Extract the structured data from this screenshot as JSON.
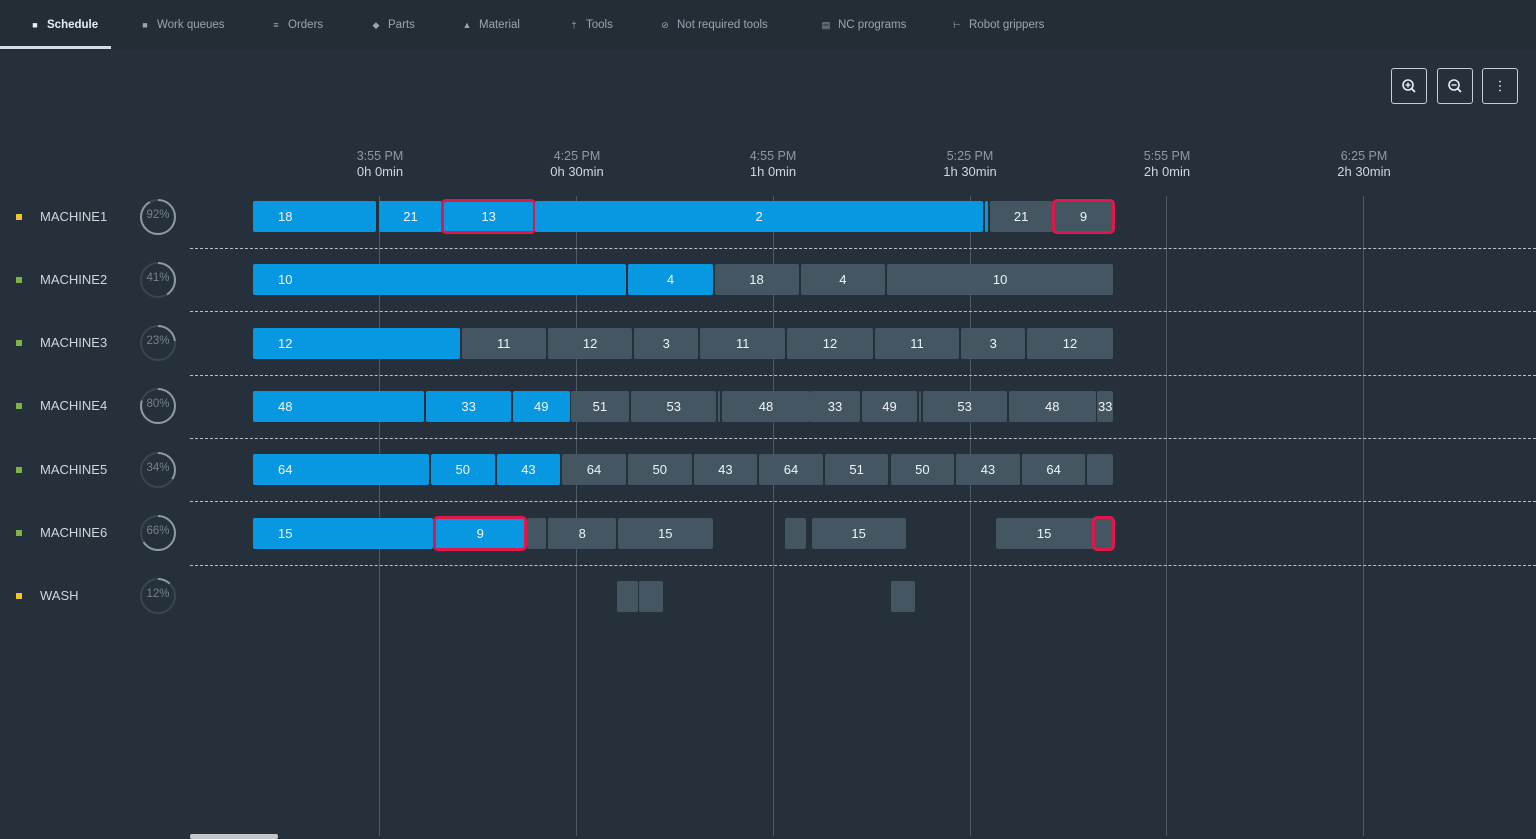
{
  "nav": {
    "tabs": [
      {
        "label": "Schedule",
        "icon": "calendar-icon",
        "active": true
      },
      {
        "label": "Work queues",
        "icon": "queue-icon",
        "active": false
      },
      {
        "label": "Orders",
        "icon": "list-icon",
        "active": false
      },
      {
        "label": "Parts",
        "icon": "part-icon",
        "active": false
      },
      {
        "label": "Material",
        "icon": "material-icon",
        "active": false
      },
      {
        "label": "Tools",
        "icon": "tool-icon",
        "active": false
      },
      {
        "label": "Not required tools",
        "icon": "blocked-tool-icon",
        "active": false
      },
      {
        "label": "NC programs",
        "icon": "program-icon",
        "active": false
      },
      {
        "label": "Robot grippers",
        "icon": "gripper-icon",
        "active": false
      }
    ]
  },
  "toolbar": {
    "zoom_in_icon": "zoom-in-icon",
    "zoom_out_icon": "zoom-out-icon",
    "more_icon": "more-vertical-icon"
  },
  "timeline": {
    "ticks": [
      {
        "clock": "3:55 PM",
        "offset": "0h 0min"
      },
      {
        "clock": "4:25 PM",
        "offset": "0h 30min"
      },
      {
        "clock": "4:55 PM",
        "offset": "1h 0min"
      },
      {
        "clock": "5:25 PM",
        "offset": "1h 30min"
      },
      {
        "clock": "5:55 PM",
        "offset": "2h 0min"
      },
      {
        "clock": "6:25 PM",
        "offset": "2h 30min"
      }
    ]
  },
  "colors": {
    "active_job": "#0897e1",
    "queued_job": "#435661",
    "flag_outline": "#e0174c",
    "marker_yellow": "#f2c230",
    "marker_green": "#7cb342",
    "background": "#25303a"
  },
  "machines": [
    {
      "name": "MACHINE1",
      "utilization": "92%",
      "utilization_value": 92,
      "marker": "yellow",
      "jobs": [
        {
          "label": "18",
          "state": "active",
          "start": 0,
          "end": 18.8
        },
        {
          "label": "21",
          "state": "active",
          "start": 19.2,
          "end": 28.8
        },
        {
          "label": "13",
          "state": "active",
          "flagged": true,
          "start": 29,
          "end": 42.8
        },
        {
          "label": "2",
          "state": "active",
          "start": 43,
          "end": 111.2
        },
        {
          "label": "",
          "state": "active",
          "start": 111.5,
          "end": 111.9
        },
        {
          "label": "21",
          "state": "queued",
          "start": 112.2,
          "end": 121.8
        },
        {
          "label": "9",
          "state": "queued",
          "flagged": true,
          "start": 122,
          "end": 131
        }
      ]
    },
    {
      "name": "MACHINE2",
      "utilization": "41%",
      "utilization_value": 41,
      "marker": "green",
      "jobs": [
        {
          "label": "10",
          "state": "active",
          "start": 0,
          "end": 56.8
        },
        {
          "label": "4",
          "state": "active",
          "start": 57.1,
          "end": 70.1
        },
        {
          "label": "18",
          "state": "queued",
          "start": 70.3,
          "end": 83.1
        },
        {
          "label": "4",
          "state": "queued",
          "start": 83.4,
          "end": 96.3
        },
        {
          "label": "10",
          "state": "queued",
          "start": 96.6,
          "end": 131
        }
      ]
    },
    {
      "name": "MACHINE3",
      "utilization": "23%",
      "utilization_value": 23,
      "marker": "green",
      "jobs": [
        {
          "label": "12",
          "state": "active",
          "start": 0,
          "end": 31.5
        },
        {
          "label": "11",
          "state": "queued",
          "start": 31.8,
          "end": 44.6
        },
        {
          "label": "12",
          "state": "queued",
          "start": 44.9,
          "end": 57.8
        },
        {
          "label": "3",
          "state": "queued",
          "start": 58.1,
          "end": 67.8
        },
        {
          "label": "11",
          "state": "queued",
          "start": 68.1,
          "end": 81.1
        },
        {
          "label": "12",
          "state": "queued",
          "start": 81.4,
          "end": 94.4
        },
        {
          "label": "11",
          "state": "queued",
          "start": 94.7,
          "end": 107.6
        },
        {
          "label": "3",
          "state": "queued",
          "start": 107.9,
          "end": 117.6
        },
        {
          "label": "12",
          "state": "queued",
          "start": 117.9,
          "end": 131
        }
      ]
    },
    {
      "name": "MACHINE4",
      "utilization": "80%",
      "utilization_value": 80,
      "marker": "green",
      "jobs": [
        {
          "label": "48",
          "state": "active",
          "start": 0,
          "end": 26.1
        },
        {
          "label": "33",
          "state": "active",
          "start": 26.4,
          "end": 39.3
        },
        {
          "label": "49",
          "state": "active",
          "start": 39.6,
          "end": 48.2
        },
        {
          "label": "51",
          "state": "queued",
          "start": 48.4,
          "end": 57.3
        },
        {
          "label": "53",
          "state": "queued",
          "start": 57.6,
          "end": 70.6
        },
        {
          "label": "",
          "state": "queued",
          "start": 70.8,
          "end": 71.1
        },
        {
          "label": "48",
          "state": "queued",
          "start": 71.4,
          "end": 84.9
        },
        {
          "label": "33",
          "state": "queued",
          "start": 84.9,
          "end": 92.4
        },
        {
          "label": "49",
          "state": "queued",
          "start": 92.7,
          "end": 101.2
        },
        {
          "label": "",
          "state": "queued",
          "start": 101.4,
          "end": 101.7
        },
        {
          "label": "53",
          "state": "queued",
          "start": 102,
          "end": 114.8
        },
        {
          "label": "48",
          "state": "queued",
          "start": 115.1,
          "end": 128.4
        },
        {
          "label": "33",
          "state": "queued",
          "start": 128.6,
          "end": 131
        }
      ]
    },
    {
      "name": "MACHINE5",
      "utilization": "34%",
      "utilization_value": 34,
      "marker": "green",
      "jobs": [
        {
          "label": "64",
          "state": "active",
          "start": 0,
          "end": 26.8
        },
        {
          "label": "50",
          "state": "active",
          "start": 27.1,
          "end": 36.8
        },
        {
          "label": "43",
          "state": "active",
          "start": 37.1,
          "end": 46.8
        },
        {
          "label": "64",
          "state": "queued",
          "start": 47.1,
          "end": 56.8
        },
        {
          "label": "50",
          "state": "queued",
          "start": 57.1,
          "end": 66.8
        },
        {
          "label": "43",
          "state": "queued",
          "start": 67.1,
          "end": 76.8
        },
        {
          "label": "64",
          "state": "queued",
          "start": 77.1,
          "end": 86.8
        },
        {
          "label": "51",
          "state": "queued",
          "start": 87.1,
          "end": 96.8
        },
        {
          "label": "50",
          "state": "queued",
          "start": 97.1,
          "end": 106.8
        },
        {
          "label": "43",
          "state": "queued",
          "start": 107.1,
          "end": 116.8
        },
        {
          "label": "64",
          "state": "queued",
          "start": 117.1,
          "end": 126.8
        },
        {
          "label": "",
          "state": "queued",
          "start": 127.1,
          "end": 131
        }
      ]
    },
    {
      "name": "MACHINE6",
      "utilization": "66%",
      "utilization_value": 66,
      "marker": "green",
      "jobs": [
        {
          "label": "15",
          "state": "active",
          "start": 0,
          "end": 27.4
        },
        {
          "label": "9",
          "state": "active",
          "flagged": true,
          "start": 27.7,
          "end": 41.5
        },
        {
          "label": "",
          "state": "queued",
          "start": 41.8,
          "end": 44.7
        },
        {
          "label": "8",
          "state": "queued",
          "start": 45,
          "end": 55.3
        },
        {
          "label": "15",
          "state": "queued",
          "start": 55.6,
          "end": 70
        },
        {
          "label": "",
          "state": "queued",
          "start": 81.1,
          "end": 84.2
        },
        {
          "label": "15",
          "state": "queued",
          "start": 85.1,
          "end": 99.4
        },
        {
          "label": "15",
          "state": "queued",
          "start": 113.1,
          "end": 127.9
        },
        {
          "label": "",
          "state": "queued",
          "flagged": true,
          "start": 128.1,
          "end": 131
        }
      ]
    },
    {
      "name": "WASH",
      "utilization": "12%",
      "utilization_value": 12,
      "marker": "yellow",
      "jobs": [
        {
          "label": "",
          "state": "queued",
          "start": 55.5,
          "end": 58.6
        },
        {
          "label": "",
          "state": "queued",
          "start": 58.8,
          "end": 62.5
        },
        {
          "label": "",
          "state": "queued",
          "start": 97.1,
          "end": 100.9
        }
      ]
    }
  ]
}
